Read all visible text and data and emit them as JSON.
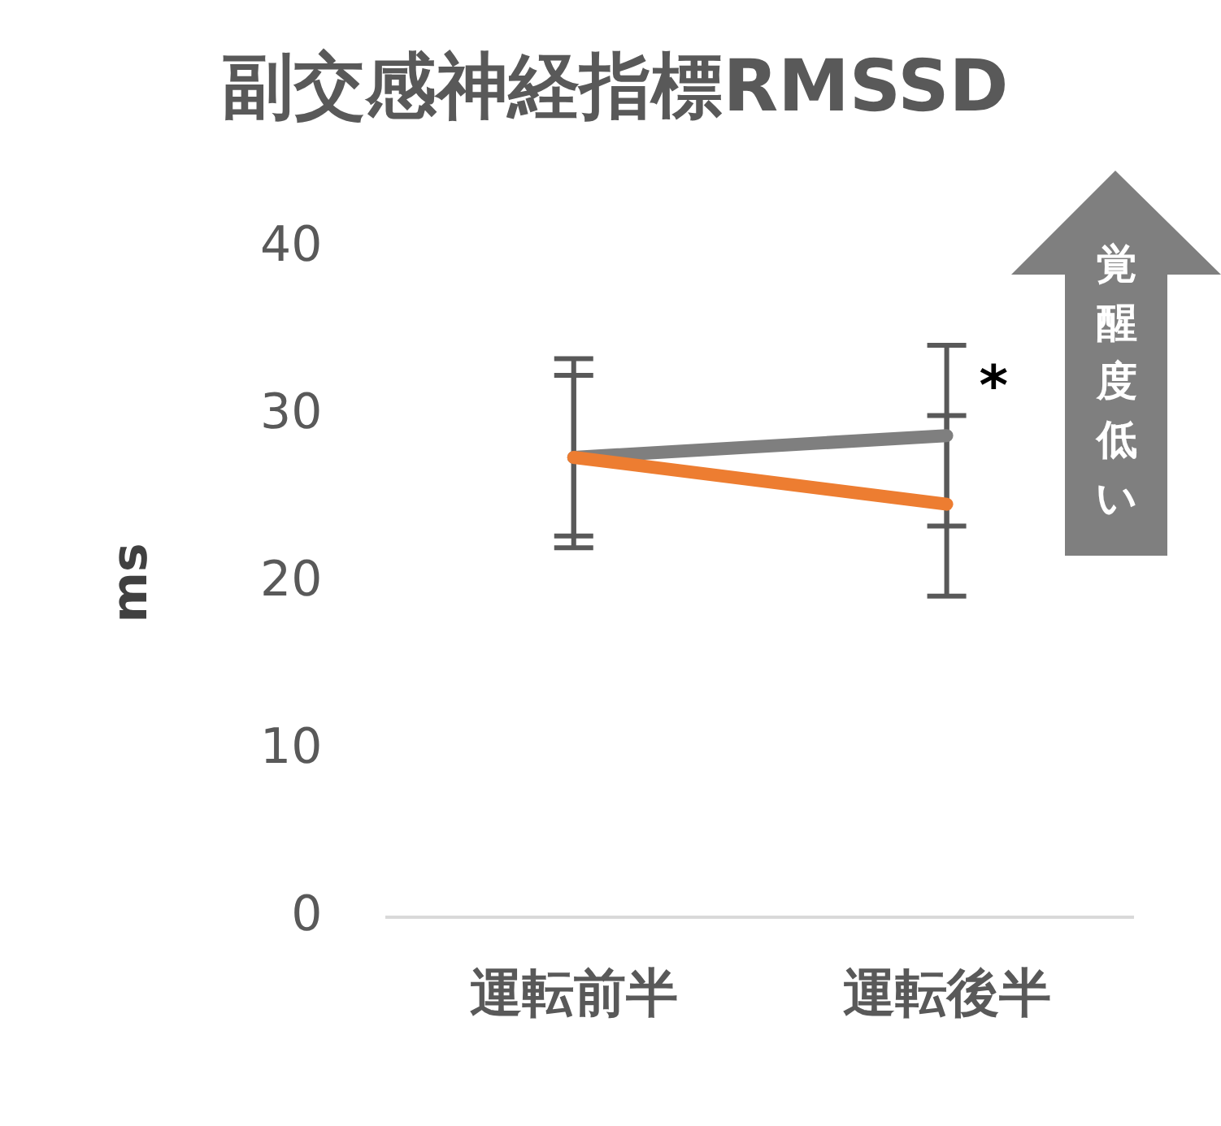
{
  "chart_data": {
    "type": "line",
    "title": "副交感神経指標RMSSD",
    "ylabel": "ms",
    "categories": [
      "運転前半",
      "運転後半"
    ],
    "series": [
      {
        "color": "#ed7d31",
        "values": [
          27.5,
          24.7
        ],
        "errors": [
          [
            22.8,
            32.4
          ],
          [
            19.2,
            30.0
          ]
        ]
      },
      {
        "color": "#7f7f7f",
        "values": [
          27.5,
          28.8
        ],
        "errors": [
          [
            22.1,
            33.4
          ],
          [
            23.4,
            34.2
          ]
        ]
      }
    ],
    "ylim": [
      0,
      40
    ],
    "yticks": [
      0,
      10,
      20,
      30,
      40
    ],
    "grid": false,
    "legend": false,
    "marker": "none",
    "line_style": "solid",
    "annotations": [
      {
        "text": "*",
        "x": "運転後半",
        "y": 31.5
      },
      "覚醒度低い"
    ]
  }
}
